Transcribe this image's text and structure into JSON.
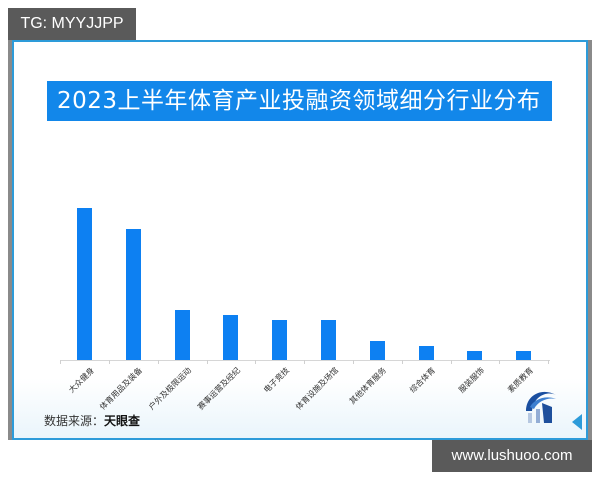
{
  "overlay": {
    "tg_label": "TG: MYYJJPP",
    "watermark": "www.lushuoo.com"
  },
  "chart": {
    "title": "2023上半年体育产业投融资领域细分行业分布",
    "source_label": "数据来源：",
    "source_value": "天眼查",
    "bar_color": "#0d80f2",
    "title_bg_color": "#1287ea",
    "frame_color": "#2d9bd9"
  },
  "chart_data": {
    "type": "bar",
    "title": "2023上半年体育产业投融资领域细分行业分布",
    "xlabel": "",
    "ylabel": "",
    "y_axis_visible": false,
    "grid": false,
    "legend": null,
    "value_note": "No y-axis shown; values are relative bar heights in pixels",
    "categories": [
      "大众健身",
      "体育用品及装备",
      "户外及极限运动",
      "赛事运营及经纪",
      "电子竞技",
      "体育设施及场馆",
      "其他体育服务",
      "综合体育",
      "服装服饰",
      "素质教育"
    ],
    "values": [
      152,
      131,
      50,
      45,
      40,
      40,
      19,
      14,
      9,
      9
    ],
    "ylim": [
      0,
      160
    ],
    "source": "数据来源：天眼查"
  }
}
